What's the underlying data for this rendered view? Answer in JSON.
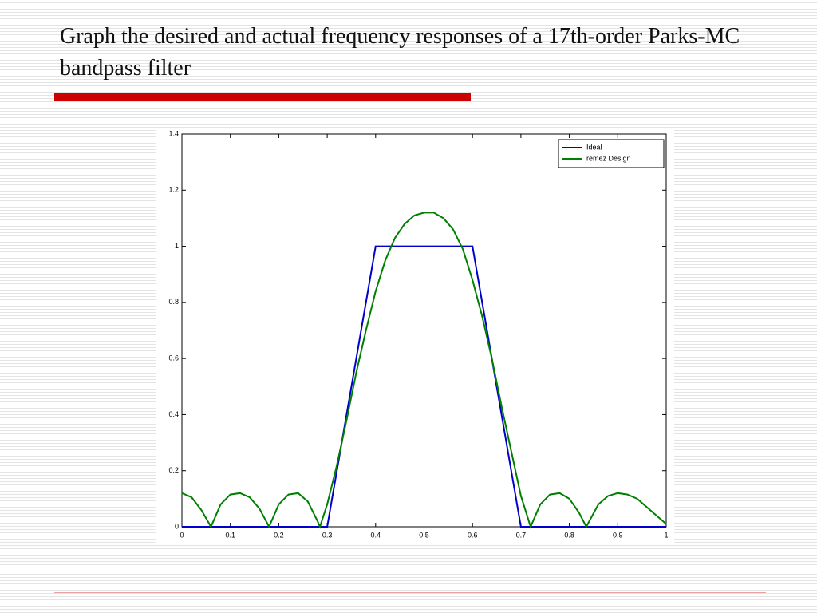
{
  "chart_data": {
    "type": "line",
    "title": "Graph the desired and actual frequency responses of a 17th-order Parks-MC bandpass filter",
    "xlim": [
      0,
      1
    ],
    "xticks": [
      0,
      0.1,
      0.2,
      0.3,
      0.4,
      0.5,
      0.6,
      0.7,
      0.8,
      0.9,
      1
    ],
    "ylim": [
      0,
      1.4
    ],
    "yticks": [
      0,
      0.2,
      0.4,
      0.6,
      0.8,
      1,
      1.2,
      1.4
    ],
    "legend": "upper right",
    "series": [
      {
        "name": "Ideal",
        "color": "#0000cc",
        "x": [
          0,
          0.3,
          0.4,
          0.6,
          0.7,
          1
        ],
        "values": [
          0,
          0,
          1,
          1,
          0,
          0
        ]
      },
      {
        "name": "remez Design",
        "color": "#008000",
        "x": [
          0,
          0.02,
          0.04,
          0.06,
          0.08,
          0.1,
          0.12,
          0.14,
          0.16,
          0.18,
          0.2,
          0.22,
          0.24,
          0.26,
          0.28,
          0.285,
          0.3,
          0.32,
          0.34,
          0.36,
          0.38,
          0.4,
          0.42,
          0.44,
          0.46,
          0.48,
          0.5,
          0.52,
          0.54,
          0.56,
          0.58,
          0.6,
          0.62,
          0.64,
          0.66,
          0.68,
          0.7,
          0.72,
          0.74,
          0.76,
          0.78,
          0.8,
          0.82,
          0.835,
          0.86,
          0.88,
          0.9,
          0.92,
          0.94,
          0.96,
          0.98,
          1
        ],
        "values": [
          0.12,
          0.105,
          0.06,
          0,
          0.08,
          0.115,
          0.12,
          0.105,
          0.065,
          0,
          0.08,
          0.115,
          0.12,
          0.09,
          0.02,
          0,
          0.08,
          0.22,
          0.38,
          0.55,
          0.7,
          0.84,
          0.95,
          1.03,
          1.08,
          1.11,
          1.12,
          1.12,
          1.1,
          1.06,
          0.99,
          0.88,
          0.75,
          0.6,
          0.43,
          0.27,
          0.11,
          0,
          0.08,
          0.115,
          0.12,
          0.1,
          0.05,
          0,
          0.08,
          0.11,
          0.12,
          0.115,
          0.1,
          0.07,
          0.04,
          0.01
        ]
      }
    ]
  }
}
